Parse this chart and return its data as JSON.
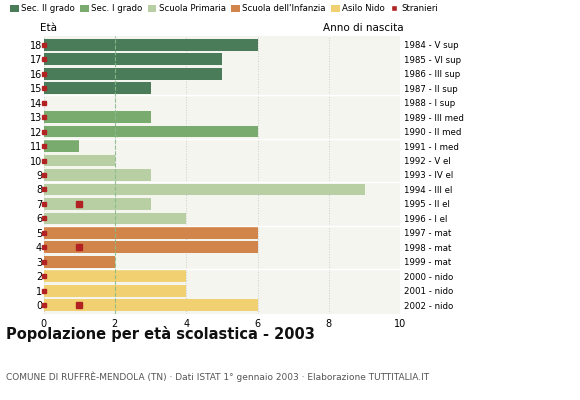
{
  "title": "Popolazione per età scolastica - 2003",
  "subtitle": "COMUNE DI RUFFRÈ-MENDOLA (TN) · Dati ISTAT 1° gennaio 2003 · Elaborazione TUTTITALIA.IT",
  "label_left": "Età",
  "label_right": "Anno di nascita",
  "ages": [
    18,
    17,
    16,
    15,
    14,
    13,
    12,
    11,
    10,
    9,
    8,
    7,
    6,
    5,
    4,
    3,
    2,
    1,
    0
  ],
  "year_labels": [
    "1984 - V sup",
    "1985 - VI sup",
    "1986 - III sup",
    "1987 - II sup",
    "1988 - I sup",
    "1989 - III med",
    "1990 - II med",
    "1991 - I med",
    "1992 - V el",
    "1993 - IV el",
    "1994 - III el",
    "1995 - II el",
    "1996 - I el",
    "1997 - mat",
    "1998 - mat",
    "1999 - mat",
    "2000 - nido",
    "2001 - nido",
    "2002 - nido"
  ],
  "bar_values": [
    6,
    5,
    5,
    3,
    0,
    3,
    6,
    1,
    2,
    3,
    9,
    3,
    4,
    6,
    6,
    2,
    4,
    4,
    6
  ],
  "bar_colors": [
    "#4a7c59",
    "#4a7c59",
    "#4a7c59",
    "#4a7c59",
    "#4a7c59",
    "#7aab6e",
    "#7aab6e",
    "#7aab6e",
    "#b8cfa4",
    "#b8cfa4",
    "#b8cfa4",
    "#b8cfa4",
    "#b8cfa4",
    "#d2854a",
    "#d2854a",
    "#d2854a",
    "#f0d070",
    "#f0d070",
    "#f0d070"
  ],
  "stranger_ages_highlight": [
    7,
    4,
    0
  ],
  "legend_labels": [
    "Sec. II grado",
    "Sec. I grado",
    "Scuola Primaria",
    "Scuola dell'Infanzia",
    "Asilo Nido",
    "Stranieri"
  ],
  "legend_colors": [
    "#4a7c59",
    "#7aab6e",
    "#b8cfa4",
    "#d2854a",
    "#f0d070",
    "#c0392b"
  ],
  "xlim": [
    0,
    10
  ],
  "xticks": [
    0,
    2,
    4,
    6,
    8,
    10
  ],
  "bg_color": "#f5f5f0",
  "bar_height": 0.82,
  "stranger_color": "#b22222",
  "dashed_line_x": 2,
  "dashed_line_color": "#88bb88",
  "grid_color": "#cccccc",
  "white_sep_color": "#ffffff"
}
